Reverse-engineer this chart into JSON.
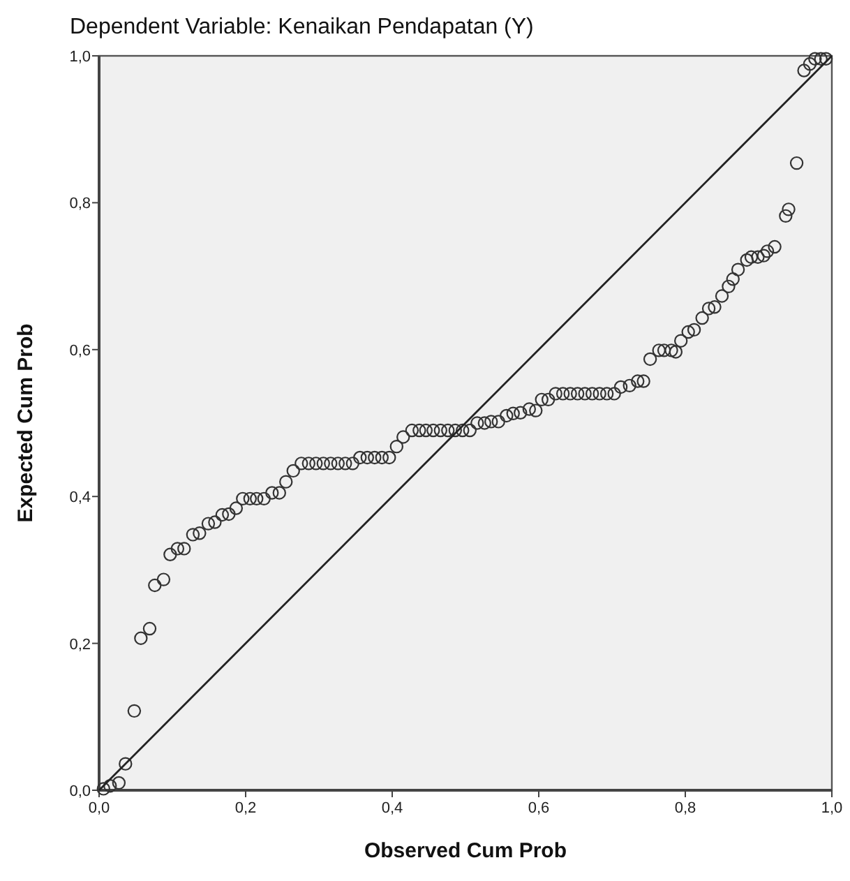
{
  "chart_data": {
    "type": "scatter",
    "title": "Dependent Variable: Kenaikan Pendapatan (Y)",
    "xlabel": "Observed Cum Prob",
    "ylabel": "Expected Cum Prob",
    "xlim": [
      0,
      1
    ],
    "ylim": [
      0,
      1
    ],
    "xticks": [
      {
        "value": 0,
        "label": "0,0"
      },
      {
        "value": 0.2,
        "label": "0,2"
      },
      {
        "value": 0.4,
        "label": "0,4"
      },
      {
        "value": 0.6,
        "label": "0,6"
      },
      {
        "value": 0.8,
        "label": "0,8"
      },
      {
        "value": 1,
        "label": "1,0"
      }
    ],
    "yticks": [
      {
        "value": 0,
        "label": "0,0"
      },
      {
        "value": 0.2,
        "label": "0,2"
      },
      {
        "value": 0.4,
        "label": "0,4"
      },
      {
        "value": 0.6,
        "label": "0,6"
      },
      {
        "value": 0.8,
        "label": "0,8"
      },
      {
        "value": 1,
        "label": "1,0"
      }
    ],
    "grid": false,
    "series": [
      {
        "color": "#333333",
        "marker": "circle",
        "x": [
          0.006,
          0.015,
          0.027,
          0.036,
          0.048,
          0.057,
          0.069,
          0.076,
          0.088,
          0.097,
          0.107,
          0.116,
          0.128,
          0.137,
          0.149,
          0.158,
          0.168,
          0.177,
          0.187,
          0.196,
          0.206,
          0.215,
          0.225,
          0.236,
          0.246,
          0.255,
          0.265,
          0.276,
          0.286,
          0.296,
          0.306,
          0.316,
          0.326,
          0.336,
          0.346,
          0.356,
          0.366,
          0.376,
          0.386,
          0.396,
          0.406,
          0.415,
          0.427,
          0.437,
          0.446,
          0.456,
          0.466,
          0.476,
          0.486,
          0.496,
          0.506,
          0.516,
          0.526,
          0.535,
          0.545,
          0.556,
          0.565,
          0.575,
          0.587,
          0.596,
          0.604,
          0.613,
          0.623,
          0.633,
          0.643,
          0.653,
          0.663,
          0.673,
          0.683,
          0.693,
          0.703,
          0.712,
          0.724,
          0.735,
          0.743,
          0.752,
          0.764,
          0.771,
          0.781,
          0.787,
          0.794,
          0.804,
          0.812,
          0.823,
          0.832,
          0.84,
          0.85,
          0.859,
          0.865,
          0.872,
          0.884,
          0.89,
          0.899,
          0.907,
          0.912,
          0.922,
          0.937,
          0.941,
          0.952,
          0.962,
          0.97,
          0.977,
          0.985,
          0.992
        ],
        "values": [
          0.002,
          0.006,
          0.01,
          0.036,
          0.108,
          0.207,
          0.22,
          0.279,
          0.287,
          0.321,
          0.329,
          0.329,
          0.348,
          0.35,
          0.363,
          0.365,
          0.375,
          0.376,
          0.384,
          0.397,
          0.397,
          0.397,
          0.397,
          0.405,
          0.405,
          0.42,
          0.435,
          0.445,
          0.445,
          0.445,
          0.445,
          0.445,
          0.445,
          0.445,
          0.445,
          0.453,
          0.453,
          0.453,
          0.453,
          0.453,
          0.468,
          0.481,
          0.49,
          0.49,
          0.49,
          0.49,
          0.49,
          0.49,
          0.49,
          0.49,
          0.49,
          0.5,
          0.5,
          0.502,
          0.502,
          0.51,
          0.513,
          0.514,
          0.519,
          0.517,
          0.532,
          0.532,
          0.54,
          0.54,
          0.54,
          0.54,
          0.54,
          0.54,
          0.54,
          0.54,
          0.54,
          0.549,
          0.551,
          0.557,
          0.557,
          0.587,
          0.599,
          0.599,
          0.599,
          0.597,
          0.612,
          0.624,
          0.627,
          0.643,
          0.656,
          0.658,
          0.673,
          0.686,
          0.696,
          0.709,
          0.722,
          0.726,
          0.726,
          0.728,
          0.734,
          0.74,
          0.782,
          0.791,
          0.854,
          0.98,
          0.989,
          0.996,
          0.996,
          0.996
        ]
      },
      {
        "type": "line",
        "color": "#222222",
        "marker": "none",
        "line_style": "solid",
        "x": [
          0,
          1
        ],
        "values": [
          0,
          1
        ]
      }
    ]
  }
}
